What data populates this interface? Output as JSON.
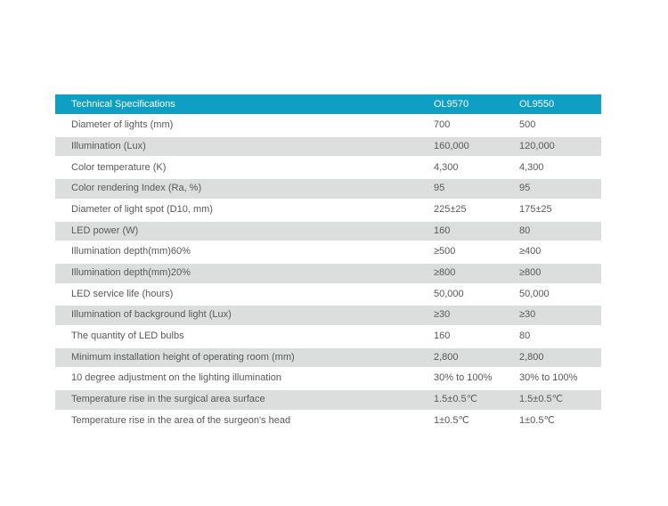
{
  "colors": {
    "header_bg": "#0EA0C4",
    "row_alt_bg": "#DCDDDD",
    "text": "#58595B"
  },
  "table": {
    "header": {
      "title": "Technical Specifications",
      "col1": "OL9570",
      "col2": "OL9550"
    },
    "rows": [
      {
        "label": "Diameter of lights (mm)",
        "col1": "700",
        "col2": "500"
      },
      {
        "label": "Illumination (Lux)",
        "col1": "160,000",
        "col2": "120,000"
      },
      {
        "label": "Color temperature (K)",
        "col1": "4,300",
        "col2": "4,300"
      },
      {
        "label": "Color rendering Index (Ra, %)",
        "col1": "95",
        "col2": "95"
      },
      {
        "label": "Diameter of light spot (D10, mm)",
        "col1": "225±25",
        "col2": "175±25"
      },
      {
        "label": "LED power (W)",
        "col1": "160",
        "col2": "80"
      },
      {
        "label": "Illumination depth(mm)60%",
        "col1": "≥500",
        "col2": "≥400"
      },
      {
        "label": "Illumination depth(mm)20%",
        "col1": "≥800",
        "col2": "≥800"
      },
      {
        "label": "LED service life (hours)",
        "col1": "50,000",
        "col2": "50,000"
      },
      {
        "label": "Illumination of background light (Lux)",
        "col1": "≥30",
        "col2": "≥30"
      },
      {
        "label": "The quantity of LED bulbs",
        "col1": "160",
        "col2": "80"
      },
      {
        "label": "Minimum installation height of operating room (mm)",
        "col1": "2,800",
        "col2": "2,800"
      },
      {
        "label": "10 degree adjustment on the lighting illumination",
        "col1": "30% to 100%",
        "col2": "30% to 100%"
      },
      {
        "label": "Temperature rise in the surgical area surface",
        "col1": "1.5±0.5℃",
        "col2": "1.5±0.5℃"
      },
      {
        "label": "Temperature rise in the area of the surgeon's head",
        "col1": "1±0.5℃",
        "col2": "1±0.5℃"
      }
    ]
  }
}
